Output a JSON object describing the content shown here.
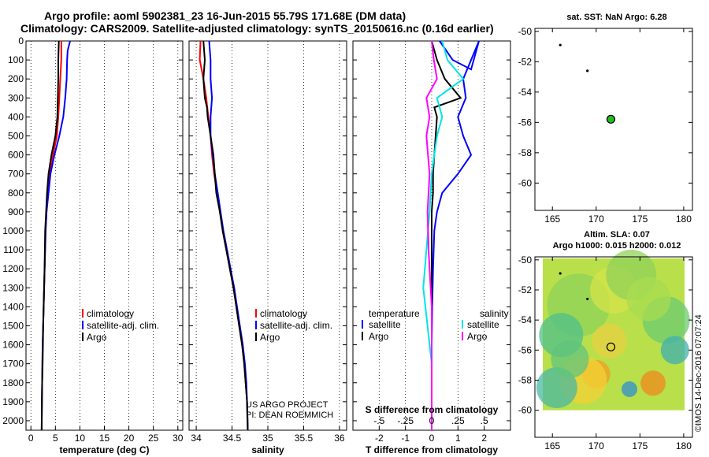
{
  "header": {
    "title_line1": "Argo profile: aoml 5902381_23 16-Jun-2015 55.79S 171.68E (DM data)",
    "title_line2": "Climatology: CARS2009. Satellite-adjusted climatology: synTS_20150616.nc (0.16d earlier)"
  },
  "chart_data": [
    {
      "id": "temperature",
      "type": "line",
      "xlabel": "temperature (deg C)",
      "ylabel": "",
      "xlim": [
        -1,
        31
      ],
      "ylim": [
        2050,
        0
      ],
      "xticks": [
        0,
        5,
        10,
        15,
        20,
        25,
        30
      ],
      "yticks": [
        0,
        100,
        200,
        300,
        400,
        500,
        600,
        700,
        800,
        900,
        1000,
        1100,
        1200,
        1300,
        1400,
        1500,
        1600,
        1700,
        1800,
        1900,
        2000
      ],
      "legend": [
        "climatology",
        "satellite-adj. clim.",
        "Argo"
      ],
      "series": [
        {
          "name": "climatology",
          "color": "#ff0000",
          "points": [
            [
              6.2,
              0
            ],
            [
              6.2,
              100
            ],
            [
              6.0,
              200
            ],
            [
              5.8,
              300
            ],
            [
              5.6,
              400
            ],
            [
              5.3,
              500
            ],
            [
              4.5,
              600
            ],
            [
              3.8,
              700
            ],
            [
              3.5,
              800
            ],
            [
              3.2,
              900
            ],
            [
              3.0,
              1000
            ],
            [
              2.9,
              1100
            ],
            [
              2.8,
              1200
            ],
            [
              2.7,
              1300
            ],
            [
              2.6,
              1400
            ],
            [
              2.5,
              1500
            ],
            [
              2.4,
              1600
            ],
            [
              2.35,
              1700
            ],
            [
              2.3,
              1800
            ],
            [
              2.25,
              1900
            ],
            [
              2.2,
              2050
            ]
          ]
        },
        {
          "name": "satellite-adj. clim.",
          "color": "#0000ff",
          "points": [
            [
              8.0,
              0
            ],
            [
              7.5,
              50
            ],
            [
              7.4,
              100
            ],
            [
              7.3,
              200
            ],
            [
              7.0,
              300
            ],
            [
              6.6,
              400
            ],
            [
              5.8,
              500
            ],
            [
              4.8,
              600
            ],
            [
              4.0,
              700
            ],
            [
              3.6,
              800
            ],
            [
              3.2,
              900
            ],
            [
              3.0,
              1000
            ],
            [
              2.9,
              1100
            ],
            [
              2.8,
              1200
            ],
            [
              2.7,
              1300
            ],
            [
              2.6,
              1400
            ],
            [
              2.5,
              1500
            ],
            [
              2.4,
              1600
            ],
            [
              2.35,
              1700
            ],
            [
              2.3,
              1800
            ],
            [
              2.25,
              1900
            ],
            [
              2.2,
              2050
            ]
          ]
        },
        {
          "name": "Argo",
          "color": "#000000",
          "points": [
            [
              5.7,
              0
            ],
            [
              5.6,
              100
            ],
            [
              5.6,
              200
            ],
            [
              5.5,
              300
            ],
            [
              5.4,
              400
            ],
            [
              5.0,
              500
            ],
            [
              4.2,
              600
            ],
            [
              3.6,
              700
            ],
            [
              3.3,
              800
            ],
            [
              3.1,
              900
            ],
            [
              2.9,
              1000
            ],
            [
              2.85,
              1100
            ],
            [
              2.8,
              1200
            ],
            [
              2.7,
              1300
            ],
            [
              2.6,
              1400
            ],
            [
              2.5,
              1500
            ],
            [
              2.45,
              1600
            ],
            [
              2.4,
              1700
            ],
            [
              2.3,
              1800
            ],
            [
              2.25,
              1900
            ],
            [
              2.2,
              2050
            ]
          ]
        }
      ]
    },
    {
      "id": "salinity",
      "type": "line",
      "xlabel": "salinity",
      "ylabel": "",
      "xlim": [
        33.9,
        36.1
      ],
      "ylim": [
        2050,
        0
      ],
      "xticks": [
        34,
        34.5,
        35,
        35.5,
        36
      ],
      "legend": [
        "climatology",
        "satellite-adj. clim.",
        "Argo"
      ],
      "annotations": [
        "US ARGO PROJECT",
        "PI: DEAN ROEMMICH"
      ],
      "series": [
        {
          "name": "climatology",
          "color": "#ff0000",
          "points": [
            [
              34.06,
              0
            ],
            [
              34.05,
              100
            ],
            [
              34.1,
              200
            ],
            [
              34.14,
              300
            ],
            [
              34.17,
              400
            ],
            [
              34.2,
              500
            ],
            [
              34.22,
              600
            ],
            [
              34.25,
              700
            ],
            [
              34.29,
              800
            ],
            [
              34.33,
              900
            ],
            [
              34.37,
              1000
            ],
            [
              34.42,
              1100
            ],
            [
              34.47,
              1200
            ],
            [
              34.52,
              1300
            ],
            [
              34.56,
              1400
            ],
            [
              34.6,
              1500
            ],
            [
              34.64,
              1600
            ],
            [
              34.67,
              1700
            ],
            [
              34.69,
              1800
            ],
            [
              34.71,
              1900
            ],
            [
              34.72,
              2050
            ]
          ]
        },
        {
          "name": "satellite-adj. clim.",
          "color": "#0000ff",
          "points": [
            [
              34.18,
              0
            ],
            [
              34.2,
              100
            ],
            [
              34.2,
              200
            ],
            [
              34.22,
              300
            ],
            [
              34.2,
              400
            ],
            [
              34.2,
              500
            ],
            [
              34.23,
              600
            ],
            [
              34.26,
              700
            ],
            [
              34.3,
              800
            ],
            [
              34.34,
              900
            ],
            [
              34.38,
              1000
            ],
            [
              34.43,
              1100
            ],
            [
              34.48,
              1200
            ],
            [
              34.53,
              1300
            ],
            [
              34.57,
              1400
            ],
            [
              34.61,
              1500
            ],
            [
              34.65,
              1600
            ],
            [
              34.68,
              1700
            ],
            [
              34.7,
              1800
            ],
            [
              34.71,
              1900
            ],
            [
              34.72,
              2050
            ]
          ]
        },
        {
          "name": "Argo",
          "color": "#000000",
          "points": [
            [
              34.1,
              0
            ],
            [
              34.12,
              100
            ],
            [
              34.1,
              200
            ],
            [
              34.12,
              300
            ],
            [
              34.15,
              350
            ],
            [
              34.16,
              400
            ],
            [
              34.2,
              500
            ],
            [
              34.24,
              600
            ],
            [
              34.26,
              700
            ],
            [
              34.28,
              800
            ],
            [
              34.33,
              900
            ],
            [
              34.37,
              1000
            ],
            [
              34.42,
              1100
            ],
            [
              34.47,
              1200
            ],
            [
              34.52,
              1300
            ],
            [
              34.56,
              1400
            ],
            [
              34.6,
              1500
            ],
            [
              34.64,
              1600
            ],
            [
              34.67,
              1700
            ],
            [
              34.69,
              1800
            ],
            [
              34.71,
              1900
            ],
            [
              34.72,
              2050
            ]
          ]
        }
      ]
    },
    {
      "id": "difference",
      "type": "line",
      "xlabel": "T difference from climatology",
      "xlabel2": "S difference from climatology",
      "ylabel": "",
      "xlim": [
        -3,
        3
      ],
      "ylim": [
        2050,
        0
      ],
      "xticks": [
        -2,
        -1,
        0,
        1,
        2
      ],
      "xticks2": [
        -0.5,
        -0.25,
        0,
        0.25,
        0.5
      ],
      "x2lim": [
        -0.75,
        0.75
      ],
      "legend_temperature_title": "temperature",
      "legend_salinity_title": "salinity",
      "legend_temperature": [
        "satellite",
        "Argo"
      ],
      "legend_salinity": [
        "satellite",
        "Argo"
      ],
      "series": [
        {
          "name": "temperature satellite",
          "axis": "T",
          "color": "#0000ff",
          "points": [
            [
              0.3,
              0
            ],
            [
              0.8,
              100
            ],
            [
              1.5,
              150
            ],
            [
              1.8,
              0
            ],
            [
              1.2,
              200
            ],
            [
              1.3,
              300
            ],
            [
              1.0,
              400
            ],
            [
              1.2,
              500
            ],
            [
              1.5,
              600
            ],
            [
              1.0,
              700
            ],
            [
              0.4,
              800
            ],
            [
              0.2,
              900
            ],
            [
              0.1,
              1000
            ],
            [
              0.05,
              1200
            ],
            [
              0.02,
              1400
            ],
            [
              0.0,
              1600
            ],
            [
              0.0,
              2050
            ]
          ]
        },
        {
          "name": "temperature Argo",
          "axis": "T",
          "color": "#000000",
          "points": [
            [
              0.0,
              0
            ],
            [
              0.2,
              100
            ],
            [
              0.5,
              200
            ],
            [
              1.1,
              300
            ],
            [
              0.1,
              350
            ],
            [
              0.2,
              400
            ],
            [
              0.15,
              500
            ],
            [
              0.1,
              600
            ],
            [
              0.05,
              700
            ],
            [
              0.05,
              800
            ],
            [
              0.0,
              900
            ],
            [
              0.0,
              1100
            ],
            [
              0.0,
              1400
            ],
            [
              0.0,
              1700
            ],
            [
              0.0,
              2050
            ]
          ]
        },
        {
          "name": "salinity satellite",
          "axis": "S",
          "color": "#00e5e5",
          "points": [
            [
              0.1,
              0
            ],
            [
              0.15,
              100
            ],
            [
              0.3,
              200
            ],
            [
              0.05,
              300
            ],
            [
              0.1,
              400
            ],
            [
              0.05,
              500
            ],
            [
              0.0,
              700
            ],
            [
              -0.02,
              900
            ],
            [
              -0.05,
              1100
            ],
            [
              -0.08,
              1300
            ],
            [
              -0.04,
              1500
            ],
            [
              0.0,
              1700
            ],
            [
              0.0,
              2050
            ]
          ]
        },
        {
          "name": "salinity Argo",
          "axis": "S",
          "color": "#ff00ff",
          "points": [
            [
              0.0,
              0
            ],
            [
              0.02,
              100
            ],
            [
              0.05,
              200
            ],
            [
              -0.05,
              300
            ],
            [
              -0.02,
              400
            ],
            [
              -0.05,
              500
            ],
            [
              -0.02,
              700
            ],
            [
              -0.04,
              900
            ],
            [
              -0.03,
              1100
            ],
            [
              0.0,
              1400
            ],
            [
              0.0,
              2050
            ]
          ]
        }
      ]
    },
    {
      "id": "sst_map",
      "type": "scatter",
      "title": "sat. SST: NaN Argo: 6.28",
      "xlim": [
        163,
        181
      ],
      "ylim": [
        -61.8,
        -49.8
      ],
      "xticks": [
        165,
        170,
        175,
        180
      ],
      "yticks": [
        -50,
        -52,
        -54,
        -56,
        -58,
        -60
      ],
      "points": [
        {
          "lon": 165.9,
          "lat": -50.9,
          "role": "previous"
        },
        {
          "lon": 169.0,
          "lat": -52.6,
          "role": "previous"
        },
        {
          "lon": 171.68,
          "lat": -55.79,
          "role": "current",
          "color": "#22bb22"
        }
      ]
    },
    {
      "id": "sla_map",
      "type": "heatmap",
      "title": "Altim. SLA: 0.07",
      "subtitle": "Argo h1000: 0.015 h2000: 0.012",
      "xlim": [
        163,
        181
      ],
      "ylim": [
        -61.8,
        -49.8
      ],
      "xticks": [
        165,
        170,
        175,
        180
      ],
      "yticks": [
        -50,
        -52,
        -54,
        -56,
        -58,
        -60
      ],
      "points": [
        {
          "lon": 165.9,
          "lat": -50.9,
          "role": "previous"
        },
        {
          "lon": 169.0,
          "lat": -52.6,
          "role": "previous"
        },
        {
          "lon": 171.68,
          "lat": -55.79,
          "role": "current"
        }
      ],
      "annotation": "©IMOS 14-Dec-2016 07:07:24"
    }
  ]
}
